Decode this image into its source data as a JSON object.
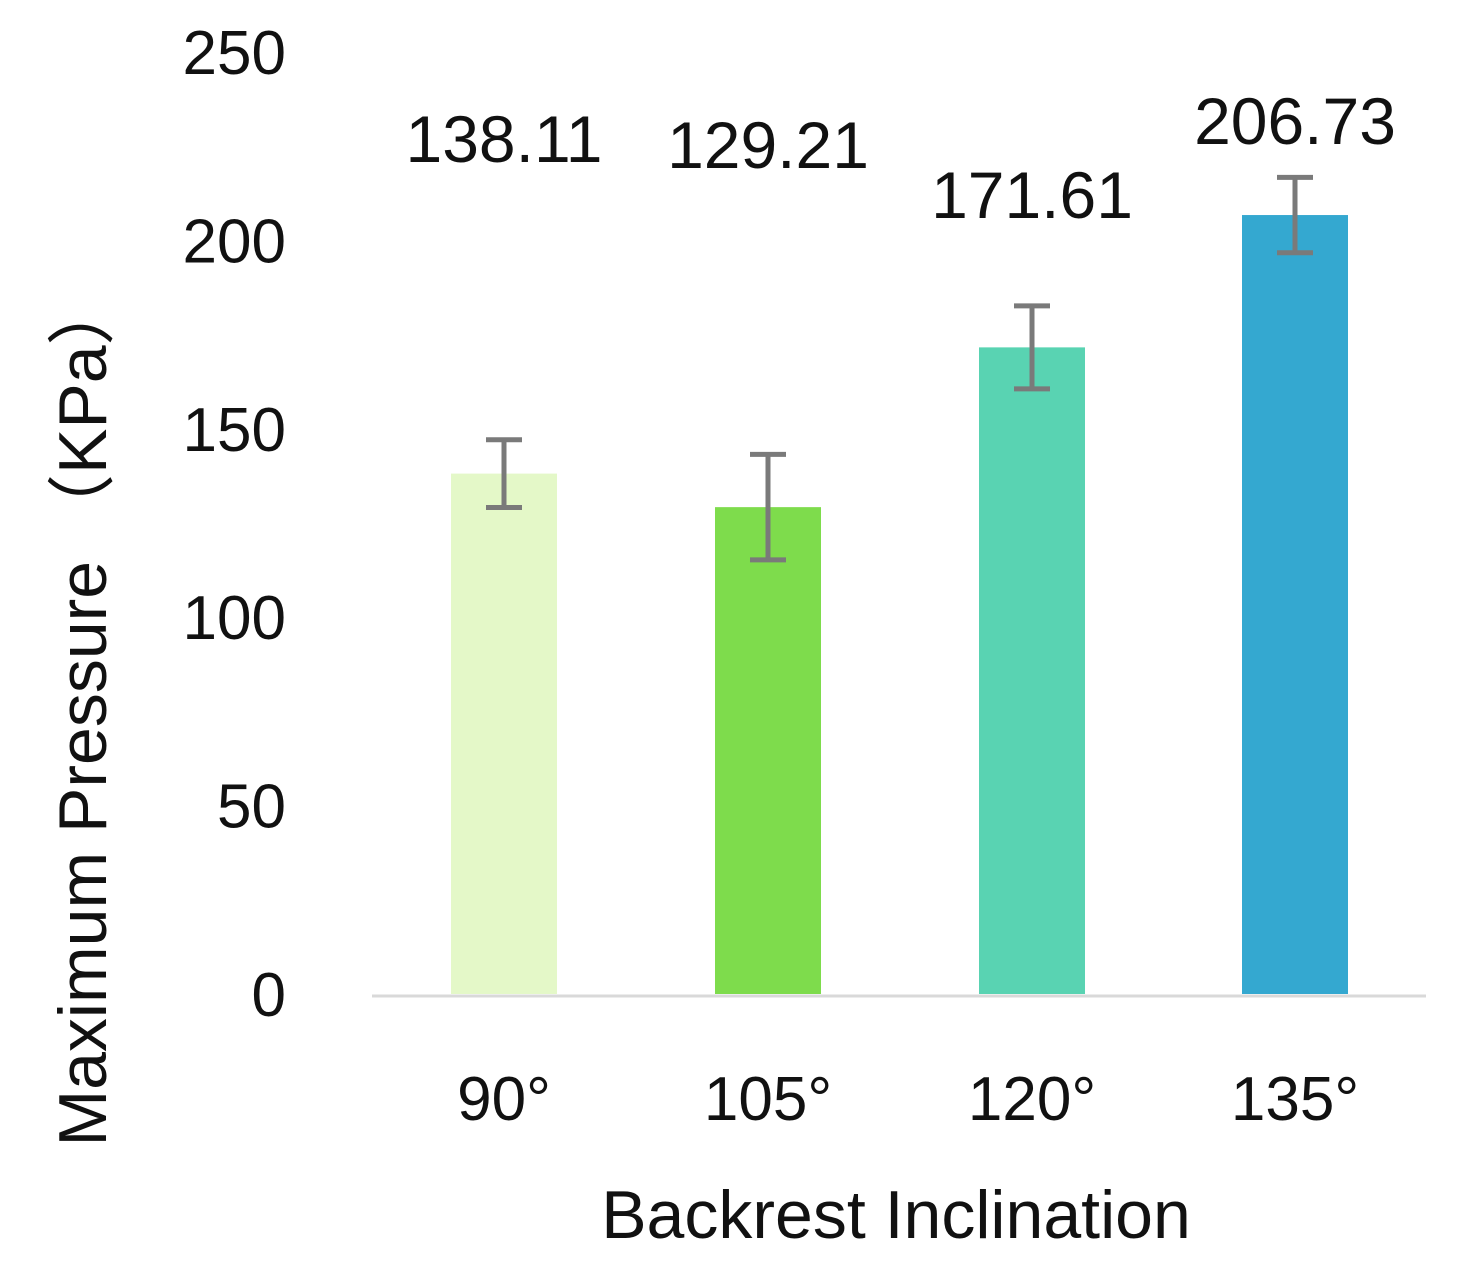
{
  "chart_data": {
    "type": "bar",
    "title": "",
    "xlabel": "Backrest Inclination",
    "ylabel": "Maximum Pressure （KPa）",
    "ylim": [
      0,
      250
    ],
    "yticks": [
      0,
      50,
      100,
      150,
      200,
      250
    ],
    "grid": false,
    "categories": [
      "90°",
      "105°",
      "120°",
      "135°"
    ],
    "values": [
      138.11,
      129.21,
      171.61,
      206.73
    ],
    "value_labels": [
      "138.11",
      "129.21",
      "171.61",
      "206.73"
    ],
    "error": [
      9,
      14,
      11,
      10
    ],
    "colors": [
      "#e4f8c8",
      "#7edc4c",
      "#59d3b2",
      "#34a8d0"
    ],
    "error_color": "#7a7a7a",
    "axis_color": "#d9d9d9"
  }
}
